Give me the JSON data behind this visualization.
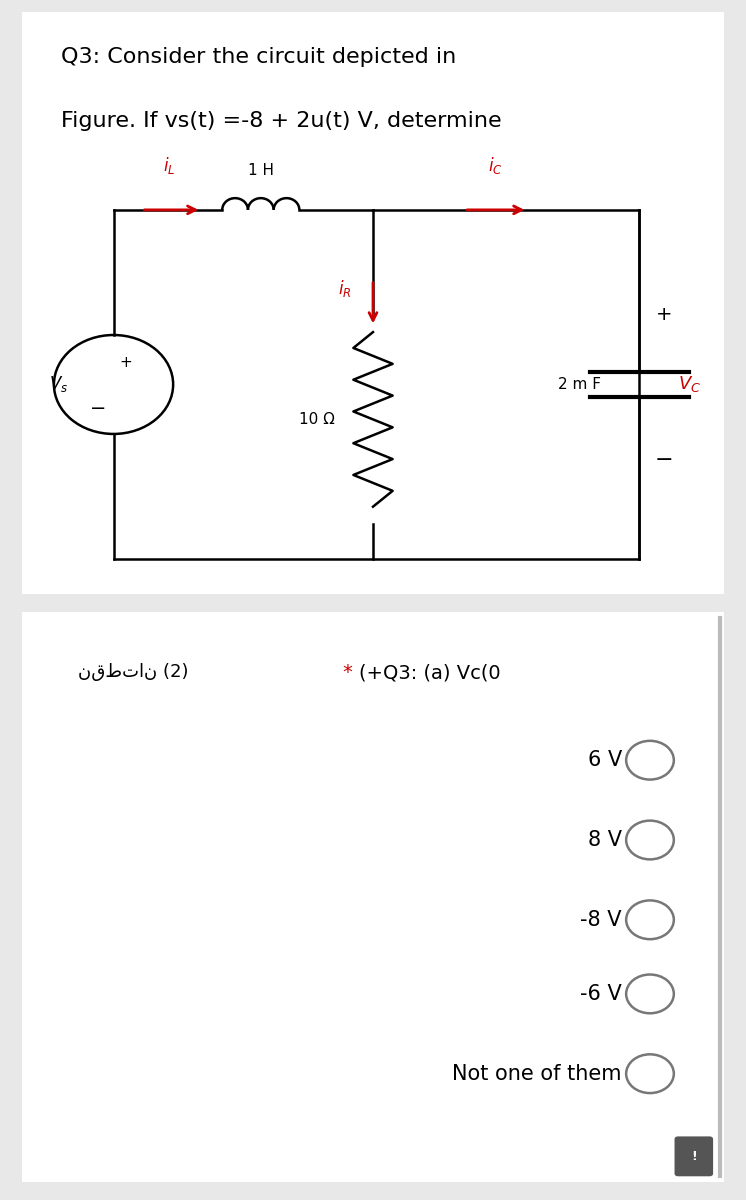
{
  "bg_color": "#e8e8e8",
  "card_color": "#ffffff",
  "title_line1": "Q3: Consider the circuit depicted in",
  "title_line2": "Figure. If vs(t) =-8 + 2u(t) V, determine",
  "title_fontsize": 16,
  "inductor_label": "1 H",
  "resistor_label": "10 Ω",
  "capacitor_label": "2 m F",
  "vc_label": "$V_C$",
  "vs_label": "$V_s$",
  "red": "#cc0000",
  "black": "#000000",
  "section2_star": "*",
  "section2_title": "(+Q3: (a) Vc(0",
  "arabic_text": "نقطتان (2)",
  "options": [
    "6 V",
    "8 V",
    "-8 V",
    "-6 V",
    "Not one of them"
  ],
  "option_fontsize": 15,
  "radio_color": "#777777"
}
